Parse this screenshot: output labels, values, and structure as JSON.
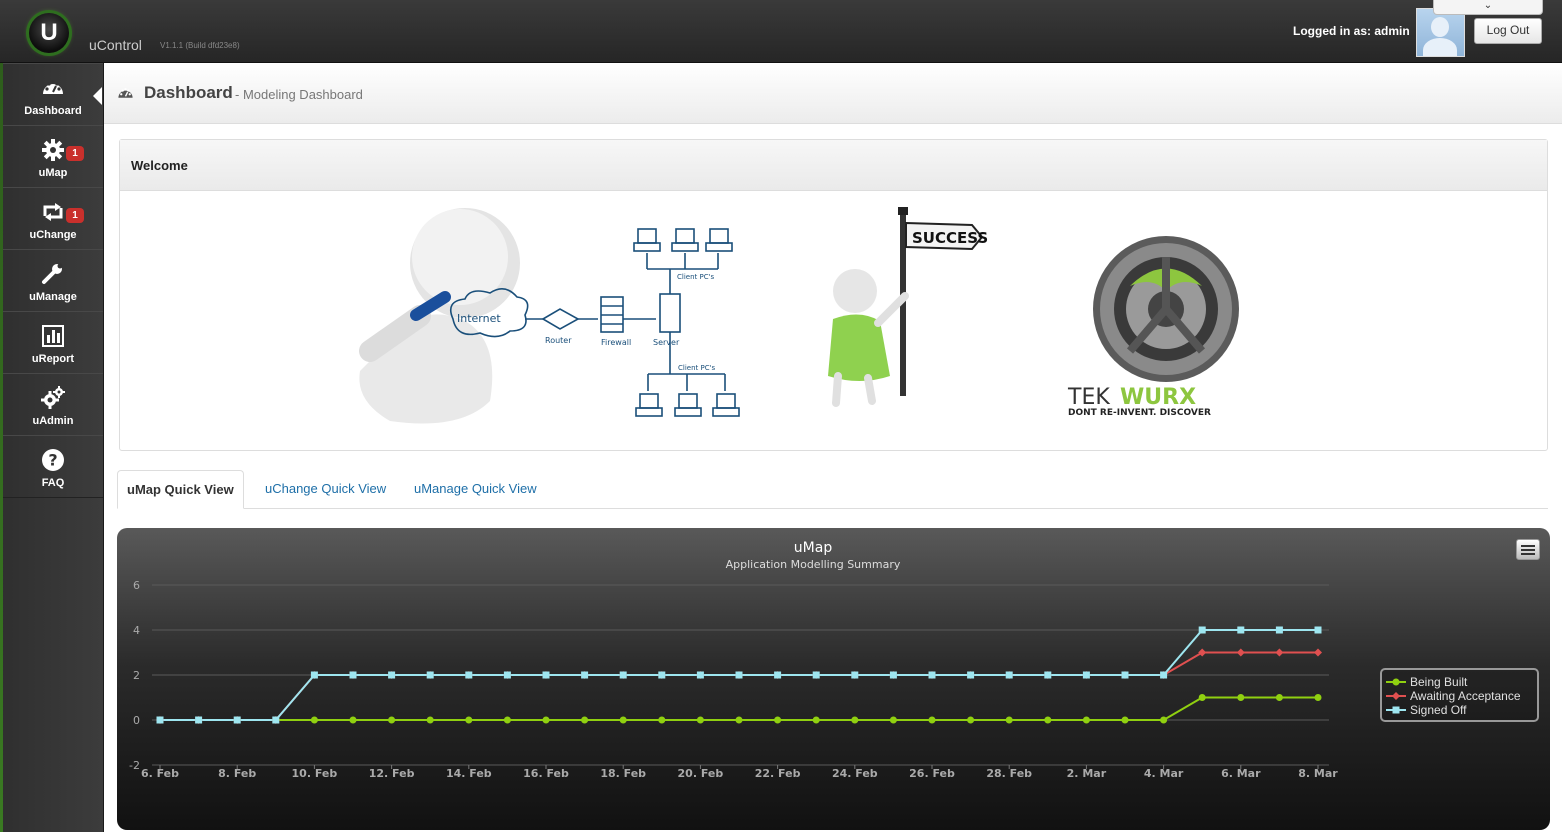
{
  "app": {
    "logo_letter": "U",
    "name": "uControl",
    "version": "V1.1.1 (Build dfd23e8)"
  },
  "user": {
    "logged_in_label": "Logged in as: admin",
    "logout_label": "Log Out",
    "dropdown_glyph": "⌄"
  },
  "sidebar": {
    "items": [
      {
        "label": "Dashboard",
        "icon": "dashboard-icon",
        "badge": ""
      },
      {
        "label": "uMap",
        "icon": "gear-icon",
        "badge": "1"
      },
      {
        "label": "uChange",
        "icon": "retweet-icon",
        "badge": "1"
      },
      {
        "label": "uManage",
        "icon": "wrench-icon",
        "badge": ""
      },
      {
        "label": "uReport",
        "icon": "bar-chart-icon",
        "badge": ""
      },
      {
        "label": "uAdmin",
        "icon": "gears-icon",
        "badge": ""
      },
      {
        "label": "FAQ",
        "icon": "question-icon",
        "badge": ""
      }
    ]
  },
  "header": {
    "title": "Dashboard",
    "subtitle": "- Modeling Dashboard"
  },
  "welcome": {
    "title": "Welcome",
    "banner": {
      "cloud_label": "Internet",
      "router_label": "Router",
      "firewall_label": "Firewall",
      "server_label": "Server",
      "clients_top_label": "Client PC's",
      "clients_bottom_label": "Client PC's",
      "sign_label": "SUCCESS",
      "brand_part1": "TEK",
      "brand_part2": "WURX",
      "brand_tagline": "DONT RE-INVENT. DISCOVER"
    }
  },
  "tabs": [
    {
      "label": "uMap Quick View",
      "active": true
    },
    {
      "label": "uChange Quick View",
      "active": false
    },
    {
      "label": "uManage Quick View",
      "active": false
    }
  ],
  "colors": {
    "accent_green": "#8dc63f",
    "link_blue": "#1e6fa8",
    "badge_red": "#c9302c",
    "series_being_built": "#90d010",
    "series_awaiting": "#e05050",
    "series_signed_off": "#9ee6f0"
  },
  "chart_data": {
    "type": "line",
    "title": "uMap",
    "subtitle": "Application Modelling Summary",
    "x": [
      "6. Feb",
      "7. Feb",
      "8. Feb",
      "9. Feb",
      "10. Feb",
      "11. Feb",
      "12. Feb",
      "13. Feb",
      "14. Feb",
      "15. Feb",
      "16. Feb",
      "17. Feb",
      "18. Feb",
      "19. Feb",
      "20. Feb",
      "21. Feb",
      "22. Feb",
      "23. Feb",
      "24. Feb",
      "25. Feb",
      "26. Feb",
      "27. Feb",
      "28. Feb",
      "1. Mar",
      "2. Mar",
      "3. Mar",
      "4. Mar",
      "5. Mar",
      "6. Mar",
      "7. Mar",
      "8. Mar"
    ],
    "x_tick_labels": [
      "6. Feb",
      "8. Feb",
      "10. Feb",
      "12. Feb",
      "14. Feb",
      "16. Feb",
      "18. Feb",
      "20. Feb",
      "22. Feb",
      "24. Feb",
      "26. Feb",
      "28. Feb",
      "2. Mar",
      "4. Mar",
      "6. Mar",
      "8. Mar"
    ],
    "y_ticks": [
      -2,
      0,
      2,
      4,
      6
    ],
    "ylim": [
      -2,
      6
    ],
    "grid": true,
    "legend_position": "right",
    "series": [
      {
        "name": "Being Built",
        "marker": "circle",
        "values": [
          0,
          0,
          0,
          0,
          0,
          0,
          0,
          0,
          0,
          0,
          0,
          0,
          0,
          0,
          0,
          0,
          0,
          0,
          0,
          0,
          0,
          0,
          0,
          0,
          0,
          0,
          0,
          1,
          1,
          1,
          1
        ]
      },
      {
        "name": "Awaiting Acceptance",
        "marker": "diamond",
        "values": [
          0,
          0,
          0,
          0,
          2,
          2,
          2,
          2,
          2,
          2,
          2,
          2,
          2,
          2,
          2,
          2,
          2,
          2,
          2,
          2,
          2,
          2,
          2,
          2,
          2,
          2,
          2,
          3,
          3,
          3,
          3
        ]
      },
      {
        "name": "Signed Off",
        "marker": "square",
        "values": [
          0,
          0,
          0,
          0,
          2,
          2,
          2,
          2,
          2,
          2,
          2,
          2,
          2,
          2,
          2,
          2,
          2,
          2,
          2,
          2,
          2,
          2,
          2,
          2,
          2,
          2,
          2,
          4,
          4,
          4,
          4
        ]
      }
    ]
  }
}
